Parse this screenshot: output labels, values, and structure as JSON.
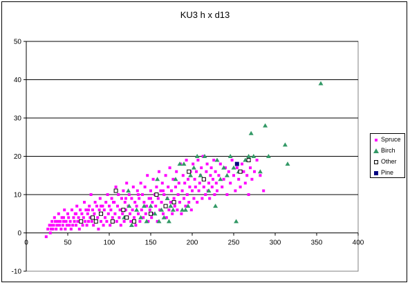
{
  "chart_data": {
    "type": "scatter",
    "title": "KU3 h x d13",
    "xlabel": "",
    "ylabel": "",
    "xlim": [
      0,
      400
    ],
    "ylim": [
      -10,
      50
    ],
    "x_ticks": [
      0,
      50,
      100,
      150,
      200,
      250,
      300,
      350,
      400
    ],
    "y_ticks": [
      -10,
      0,
      10,
      20,
      30,
      40,
      50
    ],
    "grid": "horizontal major gridlines",
    "legend_position": "right",
    "colors": {
      "plot_area": "#ffffff",
      "gridline": "#000000",
      "spruce": "#ff00ff",
      "birch": "#339966",
      "other": "#ffffff",
      "other_border": "#000000",
      "pine": "#000080"
    },
    "series": [
      {
        "name": "Spruce",
        "marker": "square",
        "points": [
          [
            24,
            -1
          ],
          [
            26,
            1
          ],
          [
            28,
            2
          ],
          [
            29,
            0
          ],
          [
            30,
            1
          ],
          [
            31,
            3
          ],
          [
            32,
            1
          ],
          [
            33,
            2
          ],
          [
            34,
            4
          ],
          [
            35,
            3
          ],
          [
            36,
            1
          ],
          [
            37,
            2
          ],
          [
            38,
            3
          ],
          [
            39,
            5
          ],
          [
            40,
            2
          ],
          [
            41,
            3
          ],
          [
            42,
            1
          ],
          [
            43,
            4
          ],
          [
            44,
            2
          ],
          [
            45,
            3
          ],
          [
            46,
            6
          ],
          [
            47,
            1
          ],
          [
            48,
            3
          ],
          [
            49,
            2
          ],
          [
            50,
            5
          ],
          [
            51,
            4
          ],
          [
            52,
            2
          ],
          [
            53,
            3
          ],
          [
            54,
            1
          ],
          [
            55,
            6
          ],
          [
            56,
            2
          ],
          [
            57,
            4
          ],
          [
            58,
            3
          ],
          [
            59,
            5
          ],
          [
            60,
            2
          ],
          [
            61,
            7
          ],
          [
            62,
            3
          ],
          [
            63,
            4
          ],
          [
            64,
            1
          ],
          [
            65,
            6
          ],
          [
            66,
            3
          ],
          [
            67,
            5
          ],
          [
            68,
            2
          ],
          [
            69,
            4
          ],
          [
            70,
            8
          ],
          [
            71,
            3
          ],
          [
            72,
            6
          ],
          [
            73,
            2
          ],
          [
            74,
            5
          ],
          [
            75,
            3
          ],
          [
            76,
            7
          ],
          [
            77,
            4
          ],
          [
            78,
            10
          ],
          [
            79,
            3
          ],
          [
            80,
            6
          ],
          [
            81,
            2
          ],
          [
            82,
            5
          ],
          [
            83,
            8
          ],
          [
            84,
            3
          ],
          [
            85,
            7
          ],
          [
            86,
            4
          ],
          [
            87,
            1
          ],
          [
            88,
            6
          ],
          [
            89,
            9
          ],
          [
            90,
            3
          ],
          [
            91,
            5
          ],
          [
            92,
            7
          ],
          [
            93,
            2
          ],
          [
            94,
            6
          ],
          [
            95,
            4
          ],
          [
            96,
            8
          ],
          [
            97,
            3
          ],
          [
            98,
            10
          ],
          [
            99,
            5
          ],
          [
            100,
            7
          ],
          [
            101,
            2
          ],
          [
            102,
            6
          ],
          [
            103,
            9
          ],
          [
            104,
            4
          ],
          [
            105,
            3
          ],
          [
            106,
            8
          ],
          [
            107,
            5
          ],
          [
            108,
            12
          ],
          [
            109,
            3
          ],
          [
            110,
            7
          ],
          [
            111,
            10
          ],
          [
            112,
            4
          ],
          [
            113,
            6
          ],
          [
            114,
            2
          ],
          [
            115,
            9
          ],
          [
            116,
            5
          ],
          [
            117,
            11
          ],
          [
            118,
            3
          ],
          [
            119,
            8
          ],
          [
            120,
            6
          ],
          [
            121,
            13
          ],
          [
            122,
            4
          ],
          [
            123,
            7
          ],
          [
            124,
            10
          ],
          [
            125,
            5
          ],
          [
            126,
            3
          ],
          [
            127,
            9
          ],
          [
            128,
            6
          ],
          [
            129,
            12
          ],
          [
            130,
            4
          ],
          [
            131,
            8
          ],
          [
            132,
            2
          ],
          [
            133,
            7
          ],
          [
            134,
            11
          ],
          [
            135,
            5
          ],
          [
            136,
            9
          ],
          [
            137,
            3
          ],
          [
            138,
            13
          ],
          [
            139,
            6
          ],
          [
            140,
            10
          ],
          [
            141,
            4
          ],
          [
            142,
            8
          ],
          [
            143,
            12
          ],
          [
            144,
            5
          ],
          [
            145,
            7
          ],
          [
            146,
            15
          ],
          [
            147,
            3
          ],
          [
            148,
            9
          ],
          [
            149,
            6
          ],
          [
            150,
            11
          ],
          [
            151,
            4
          ],
          [
            152,
            8
          ],
          [
            153,
            14
          ],
          [
            154,
            5
          ],
          [
            155,
            10
          ],
          [
            156,
            7
          ],
          [
            157,
            12
          ],
          [
            158,
            3
          ],
          [
            159,
            9
          ],
          [
            160,
            16
          ],
          [
            161,
            6
          ],
          [
            162,
            11
          ],
          [
            163,
            8
          ],
          [
            164,
            13
          ],
          [
            165,
            5
          ],
          [
            166,
            10
          ],
          [
            167,
            7
          ],
          [
            168,
            15
          ],
          [
            169,
            4
          ],
          [
            170,
            9
          ],
          [
            171,
            12
          ],
          [
            172,
            6
          ],
          [
            173,
            17
          ],
          [
            174,
            8
          ],
          [
            175,
            11
          ],
          [
            176,
            5
          ],
          [
            177,
            14
          ],
          [
            178,
            9
          ],
          [
            179,
            7
          ],
          [
            180,
            12
          ],
          [
            181,
            16
          ],
          [
            182,
            6
          ],
          [
            183,
            10
          ],
          [
            184,
            13
          ],
          [
            185,
            8
          ],
          [
            186,
            18
          ],
          [
            187,
            5
          ],
          [
            188,
            11
          ],
          [
            189,
            15
          ],
          [
            190,
            9
          ],
          [
            191,
            13
          ],
          [
            192,
            7
          ],
          [
            193,
            19
          ],
          [
            194,
            10
          ],
          [
            195,
            14
          ],
          [
            196,
            8
          ],
          [
            197,
            12
          ],
          [
            198,
            16
          ],
          [
            199,
            6
          ],
          [
            200,
            11
          ],
          [
            201,
            18
          ],
          [
            202,
            9
          ],
          [
            203,
            14
          ],
          [
            204,
            12
          ],
          [
            205,
            16
          ],
          [
            206,
            8
          ],
          [
            207,
            19
          ],
          [
            208,
            11
          ],
          [
            209,
            13
          ],
          [
            210,
            15
          ],
          [
            211,
            17
          ],
          [
            212,
            9
          ],
          [
            213,
            20
          ],
          [
            214,
            12
          ],
          [
            215,
            14
          ],
          [
            216,
            10
          ],
          [
            217,
            16
          ],
          [
            218,
            18
          ],
          [
            219,
            11
          ],
          [
            220,
            13
          ],
          [
            221,
            9
          ],
          [
            222,
            15
          ],
          [
            223,
            17
          ],
          [
            224,
            12
          ],
          [
            225,
            14
          ],
          [
            226,
            19
          ],
          [
            227,
            10
          ],
          [
            228,
            16
          ],
          [
            229,
            13
          ],
          [
            230,
            11
          ],
          [
            232,
            15
          ],
          [
            234,
            18
          ],
          [
            236,
            12
          ],
          [
            238,
            14
          ],
          [
            240,
            17
          ],
          [
            242,
            10
          ],
          [
            244,
            16
          ],
          [
            246,
            13
          ],
          [
            248,
            19
          ],
          [
            250,
            15
          ],
          [
            252,
            11
          ],
          [
            254,
            17
          ],
          [
            256,
            14
          ],
          [
            258,
            12
          ],
          [
            260,
            18
          ],
          [
            262,
            16
          ],
          [
            264,
            13
          ],
          [
            266,
            15
          ],
          [
            268,
            10
          ],
          [
            270,
            17
          ],
          [
            272,
            14
          ],
          [
            275,
            16
          ],
          [
            278,
            19
          ],
          [
            282,
            15
          ],
          [
            286,
            11
          ],
          [
            30,
            2
          ],
          [
            45,
            4
          ],
          [
            60,
            5
          ],
          [
            75,
            6
          ],
          [
            90,
            7
          ],
          [
            105,
            8
          ],
          [
            120,
            9
          ],
          [
            135,
            10
          ],
          [
            150,
            9
          ],
          [
            165,
            11
          ]
        ]
      },
      {
        "name": "Birch",
        "marker": "triangle",
        "points": [
          [
            118,
            4
          ],
          [
            123,
            11
          ],
          [
            124,
            7
          ],
          [
            127,
            2
          ],
          [
            133,
            6
          ],
          [
            138,
            4
          ],
          [
            142,
            7
          ],
          [
            145,
            3
          ],
          [
            150,
            7
          ],
          [
            155,
            5
          ],
          [
            158,
            14
          ],
          [
            160,
            3
          ],
          [
            163,
            6
          ],
          [
            166,
            4
          ],
          [
            170,
            9
          ],
          [
            172,
            3
          ],
          [
            174,
            7
          ],
          [
            177,
            6
          ],
          [
            180,
            14
          ],
          [
            185,
            18
          ],
          [
            188,
            6
          ],
          [
            190,
            18
          ],
          [
            192,
            6
          ],
          [
            195,
            7
          ],
          [
            198,
            15
          ],
          [
            202,
            17
          ],
          [
            206,
            20
          ],
          [
            210,
            15
          ],
          [
            215,
            20
          ],
          [
            220,
            11
          ],
          [
            228,
            7
          ],
          [
            230,
            19
          ],
          [
            234,
            14
          ],
          [
            238,
            17
          ],
          [
            242,
            15
          ],
          [
            246,
            20
          ],
          [
            250,
            17
          ],
          [
            253,
            3
          ],
          [
            256,
            16
          ],
          [
            264,
            19
          ],
          [
            268,
            20
          ],
          [
            271,
            26
          ],
          [
            274,
            20
          ],
          [
            282,
            16
          ],
          [
            288,
            28
          ],
          [
            292,
            20
          ],
          [
            312,
            23
          ],
          [
            315,
            18
          ],
          [
            355,
            39
          ]
        ]
      },
      {
        "name": "Other",
        "marker": "square-open",
        "points": [
          [
            66,
            3
          ],
          [
            80,
            4
          ],
          [
            84,
            3
          ],
          [
            90,
            5
          ],
          [
            104,
            3
          ],
          [
            108,
            11
          ],
          [
            117,
            6
          ],
          [
            121,
            4
          ],
          [
            130,
            3
          ],
          [
            150,
            5
          ],
          [
            157,
            10
          ],
          [
            168,
            7
          ],
          [
            178,
            8
          ],
          [
            196,
            16
          ],
          [
            214,
            14
          ],
          [
            258,
            16
          ],
          [
            268,
            19
          ]
        ]
      },
      {
        "name": "Pine",
        "marker": "square",
        "points": [
          [
            254,
            18
          ]
        ]
      }
    ]
  }
}
